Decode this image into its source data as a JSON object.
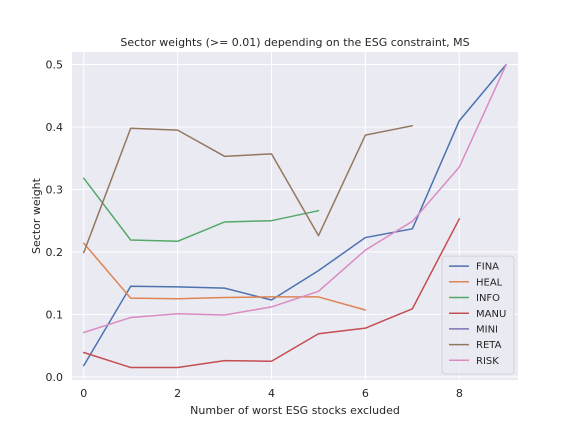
{
  "chart_data": {
    "type": "line",
    "title": "Sector weights (>= 0.01) depending on the ESG constraint, MS",
    "xlabel": "Number of worst ESG stocks excluded",
    "ylabel": "Sector weight",
    "xlim": [
      -0.25,
      9.25
    ],
    "ylim": [
      -0.005,
      0.52
    ],
    "xticks": [
      0,
      2,
      4,
      6,
      8
    ],
    "yticks": [
      0.0,
      0.1,
      0.2,
      0.3,
      0.4,
      0.5
    ],
    "xtick_labels": [
      "0",
      "2",
      "4",
      "6",
      "8"
    ],
    "ytick_labels": [
      "0.0",
      "0.1",
      "0.2",
      "0.3",
      "0.4",
      "0.5"
    ],
    "grid": true,
    "legend_position": "lower right",
    "series": [
      {
        "name": "FINA",
        "color": "#4c72b0",
        "x": [
          0,
          1,
          2,
          3,
          4,
          5,
          6,
          7,
          8,
          9
        ],
        "y": [
          0.018,
          0.145,
          0.144,
          0.142,
          0.123,
          0.17,
          0.223,
          0.237,
          0.41,
          0.5
        ]
      },
      {
        "name": "HEAL",
        "color": "#dd8452",
        "x": [
          0,
          1,
          2,
          3,
          4,
          5,
          6
        ],
        "y": [
          0.214,
          0.126,
          0.125,
          0.127,
          0.128,
          0.128,
          0.107
        ]
      },
      {
        "name": "INFO",
        "color": "#55a868",
        "x": [
          0,
          1,
          2,
          3,
          4,
          5
        ],
        "y": [
          0.318,
          0.219,
          0.217,
          0.248,
          0.25,
          0.266
        ]
      },
      {
        "name": "MANU",
        "color": "#c44e52",
        "x": [
          0,
          1,
          2,
          3,
          4,
          5,
          6,
          7,
          8
        ],
        "y": [
          0.039,
          0.015,
          0.015,
          0.026,
          0.025,
          0.069,
          0.078,
          0.109,
          0.253
        ]
      },
      {
        "name": "MINI",
        "color": "#8172b3",
        "x": [
          9
        ],
        "y": [
          0.5
        ]
      },
      {
        "name": "RETA",
        "color": "#937860",
        "x": [
          0,
          1,
          2,
          3,
          4,
          5,
          6,
          7
        ],
        "y": [
          0.199,
          0.398,
          0.395,
          0.353,
          0.357,
          0.226,
          0.387,
          0.402
        ]
      },
      {
        "name": "RISK",
        "color": "#da8bc3",
        "x": [
          0,
          1,
          2,
          3,
          4,
          5,
          6,
          7,
          8,
          9
        ],
        "y": [
          0.071,
          0.095,
          0.101,
          0.099,
          0.112,
          0.137,
          0.203,
          0.249,
          0.336,
          0.5
        ]
      }
    ]
  }
}
